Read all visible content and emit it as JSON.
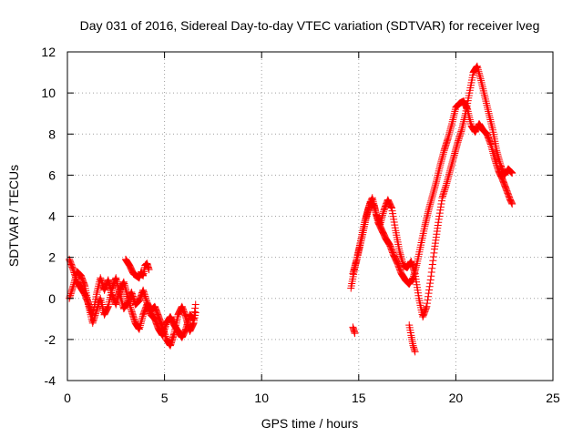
{
  "chart_data": {
    "type": "scatter",
    "title": "Day 031 of 2016, Sidereal Day-to-day VTEC variation (SDTVAR) for receiver lveg",
    "xlabel": "GPS time / hours",
    "ylabel": "SDTVAR / TECUs",
    "xlim": [
      0,
      25
    ],
    "ylim": [
      -4,
      12
    ],
    "grid": true,
    "marker": "+",
    "x_ticks": [
      0,
      5,
      10,
      15,
      20,
      25
    ],
    "y_ticks": [
      -4,
      -2,
      0,
      2,
      4,
      6,
      8,
      10,
      12
    ],
    "series": [
      {
        "name": "SDTVAR",
        "color": "#ff0000",
        "segments": [
          {
            "x": [
              0.1,
              0.3,
              0.5,
              0.7,
              0.9,
              1.1,
              1.3,
              1.5,
              1.7,
              1.9,
              2.1,
              2.3,
              2.5,
              2.7,
              2.9,
              3.1,
              3.3,
              3.5,
              3.7,
              3.9,
              4.1,
              4.3,
              4.5,
              4.7,
              4.9,
              5.1,
              5.3,
              5.5,
              5.7,
              5.9,
              6.1,
              6.3,
              6.5,
              6.6
            ],
            "y": [
              1.9,
              1.4,
              0.8,
              0.5,
              0.2,
              -0.3,
              -0.8,
              0.2,
              1.0,
              0.4,
              0.9,
              0.2,
              -0.3,
              0.4,
              0.8,
              0.1,
              -0.6,
              -1.2,
              -1.5,
              -0.8,
              -0.3,
              -0.8,
              -1.0,
              -1.5,
              -1.8,
              -1.2,
              -0.9,
              -1.3,
              -1.6,
              -1.9,
              -1.5,
              -0.8,
              -1.0,
              -0.3
            ]
          },
          {
            "x": [
              0.1,
              0.3,
              0.5,
              0.7,
              0.9,
              1.1,
              1.3,
              1.5,
              1.7,
              1.9,
              2.1,
              2.3,
              2.5,
              2.7,
              2.9,
              3.1,
              3.3,
              3.5,
              3.7,
              3.9,
              4.1,
              4.3,
              4.5,
              4.7,
              4.9,
              5.1,
              5.3,
              5.5,
              5.7,
              5.9,
              6.1,
              6.3,
              6.5,
              6.6
            ],
            "y": [
              0.0,
              0.6,
              1.3,
              1.1,
              0.6,
              -0.4,
              -1.2,
              -0.6,
              0.0,
              -0.8,
              -0.4,
              0.5,
              1.0,
              0.2,
              -0.5,
              -0.2,
              0.3,
              -0.3,
              -0.1,
              0.4,
              -0.2,
              -0.6,
              -0.4,
              -0.9,
              -1.4,
              -2.0,
              -2.3,
              -1.7,
              -0.8,
              -0.4,
              -0.9,
              -1.6,
              -1.2,
              -0.7
            ]
          },
          {
            "x": [
              3.0,
              3.2,
              3.4,
              3.7,
              3.8,
              3.9,
              4.0,
              4.1,
              4.2
            ],
            "y": [
              1.9,
              1.6,
              1.2,
              1.0,
              1.3,
              1.1,
              1.6,
              1.7,
              1.4
            ]
          },
          {
            "x": [
              14.7,
              14.8
            ],
            "y": [
              -1.4,
              -1.7
            ]
          },
          {
            "x": [
              14.6,
              14.8,
              15.0,
              15.2,
              15.4,
              15.6,
              15.8,
              16.0,
              16.2,
              16.4,
              16.6,
              16.8,
              17.0,
              17.2,
              17.4,
              17.6,
              17.8,
              18.0,
              18.2,
              18.4,
              18.6,
              18.8,
              19.0,
              19.2,
              19.4,
              19.6,
              19.8,
              20.0,
              20.2,
              20.4,
              20.6,
              20.8,
              21.0,
              21.2,
              21.4,
              21.6,
              21.8,
              22.0,
              22.2,
              22.4,
              22.6,
              22.8,
              22.9
            ],
            "y": [
              0.5,
              1.5,
              2.3,
              3.1,
              4.0,
              4.7,
              4.5,
              3.7,
              3.3,
              2.9,
              2.6,
              2.1,
              1.7,
              1.2,
              0.9,
              0.7,
              1.0,
              1.7,
              2.6,
              3.5,
              4.3,
              5.0,
              5.7,
              6.5,
              7.2,
              7.8,
              8.5,
              9.3,
              9.5,
              9.6,
              9.2,
              8.4,
              8.1,
              8.5,
              8.2,
              8.0,
              7.5,
              6.8,
              6.2,
              5.8,
              5.3,
              4.8,
              4.6
            ]
          },
          {
            "x": [
              14.7,
              14.9,
              15.1,
              15.3,
              15.5,
              15.7,
              15.9,
              16.1,
              16.3,
              16.5,
              16.7,
              16.9,
              17.1,
              17.3,
              17.5,
              17.7,
              17.9,
              18.1,
              18.3,
              18.5,
              18.7,
              18.9,
              19.1,
              19.3,
              19.5,
              19.7,
              19.9,
              20.1,
              20.3,
              20.5,
              20.7,
              20.9,
              21.1,
              21.3,
              21.5,
              21.7,
              21.9,
              22.1,
              22.3,
              22.5,
              22.7,
              22.9
            ],
            "y": [
              1.2,
              1.9,
              2.8,
              3.7,
              4.4,
              4.9,
              4.1,
              3.6,
              4.3,
              4.8,
              4.4,
              3.3,
              2.3,
              1.6,
              1.5,
              1.8,
              1.2,
              0.0,
              -0.9,
              -0.4,
              0.9,
              2.4,
              3.7,
              4.9,
              5.5,
              6.2,
              6.9,
              7.6,
              8.2,
              9.0,
              10.0,
              11.0,
              11.3,
              10.6,
              9.8,
              9.0,
              8.2,
              7.2,
              6.5,
              6.0,
              6.3,
              6.1
            ]
          },
          {
            "x": [
              17.6,
              17.7,
              17.8,
              17.9
            ],
            "y": [
              -1.3,
              -1.8,
              -2.3,
              -2.6
            ]
          }
        ]
      }
    ]
  }
}
